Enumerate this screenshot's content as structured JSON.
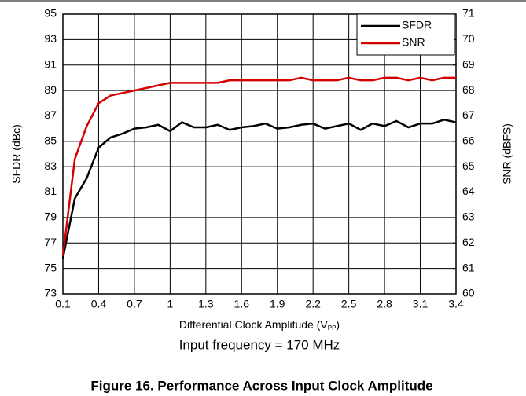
{
  "chart_data": {
    "type": "line",
    "y_label": "SFDR (dBc)",
    "y2_label": "SNR (dBFS)",
    "x_label": {
      "text": "Differential Clock Amplitude (V",
      "subscript": "PP",
      "suffix": ")"
    },
    "annotation": "Input frequency = 170 MHz",
    "caption": "Figure 16. Performance Across Input Clock Amplitude",
    "x": [
      0.1,
      0.2,
      0.3,
      0.4,
      0.5,
      0.6,
      0.7,
      0.8,
      0.9,
      1.0,
      1.1,
      1.2,
      1.3,
      1.4,
      1.5,
      1.6,
      1.7,
      1.8,
      1.9,
      2.0,
      2.1,
      2.2,
      2.3,
      2.4,
      2.5,
      2.6,
      2.7,
      2.8,
      2.9,
      3.0,
      3.1,
      3.2,
      3.3,
      3.4
    ],
    "series": [
      {
        "name": "SFDR",
        "color": "#000000",
        "axis": "y",
        "values": [
          75.8,
          80.5,
          82.1,
          84.5,
          85.3,
          85.6,
          86.0,
          86.1,
          86.3,
          85.8,
          86.5,
          86.1,
          86.1,
          86.3,
          85.9,
          86.1,
          86.2,
          86.4,
          86.0,
          86.1,
          86.3,
          86.4,
          86.0,
          86.2,
          86.4,
          85.9,
          86.4,
          86.2,
          86.6,
          86.1,
          86.4,
          86.4,
          86.7,
          86.5
        ]
      },
      {
        "name": "SNR",
        "color": "#d40000",
        "axis": "y2",
        "values": [
          61.5,
          65.3,
          66.6,
          67.5,
          67.8,
          67.9,
          68.0,
          68.1,
          68.2,
          68.3,
          68.3,
          68.3,
          68.3,
          68.3,
          68.4,
          68.4,
          68.4,
          68.4,
          68.4,
          68.4,
          68.5,
          68.4,
          68.4,
          68.4,
          68.5,
          68.4,
          68.4,
          68.5,
          68.5,
          68.4,
          68.5,
          68.4,
          68.5,
          68.5
        ]
      }
    ],
    "xlim": [
      0.1,
      3.4
    ],
    "xticks": [
      0.1,
      0.4,
      0.7,
      1,
      1.3,
      1.6,
      1.9,
      2.2,
      2.5,
      2.8,
      3.1,
      3.4
    ],
    "ylim": [
      73,
      95
    ],
    "yticks": [
      73,
      75,
      77,
      79,
      81,
      83,
      85,
      87,
      89,
      91,
      93,
      95
    ],
    "y2lim": [
      60,
      71
    ],
    "y2ticks": [
      60,
      61,
      62,
      63,
      64,
      65,
      66,
      67,
      68,
      69,
      70,
      71
    ],
    "grid": true,
    "legend": "top-right"
  }
}
